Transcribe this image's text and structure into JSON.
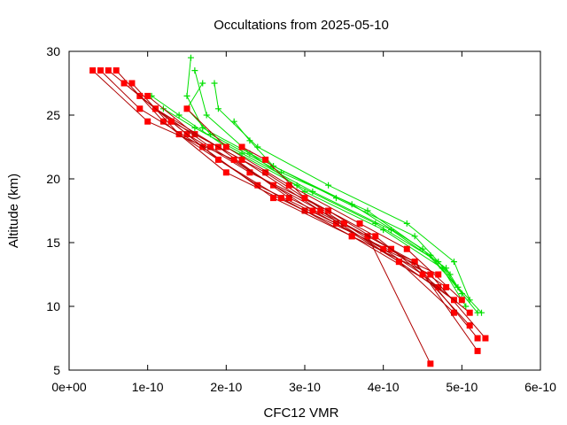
{
  "chart_data": {
    "type": "line",
    "title": "Occultations from 2025-05-10",
    "xlabel": "CFC12 VMR",
    "ylabel": "Altitude (km)",
    "xlim": [
      0,
      6e-10
    ],
    "ylim": [
      5,
      30
    ],
    "x_ticks": [
      0,
      1e-10,
      2e-10,
      3e-10,
      4e-10,
      5e-10,
      6e-10
    ],
    "x_tick_labels": [
      "0e+00",
      "1e-10",
      "2e-10",
      "3e-10",
      "4e-10",
      "5e-10",
      "6e-10"
    ],
    "y_ticks": [
      5,
      10,
      15,
      20,
      25,
      30
    ],
    "y_tick_labels": [
      "5",
      "10",
      "15",
      "20",
      "25",
      "30"
    ],
    "grid": false,
    "legend": "none",
    "colors": {
      "red": "#ff0000",
      "redLine": "#b00000",
      "green": "#00e000"
    },
    "series_red": [
      {
        "x": [
          6e-11,
          1.2e-10,
          2e-10,
          3e-10,
          4.4e-10,
          5.2e-10
        ],
        "y": [
          28.5,
          24.5,
          20.5,
          17.5,
          13.5,
          7.5
        ]
      },
      {
        "x": [
          8e-11,
          1.4e-10,
          2.4e-10,
          3.4e-10,
          4.2e-10,
          4.9e-10
        ],
        "y": [
          27.5,
          23.5,
          19.5,
          16.5,
          13.5,
          9.5
        ]
      },
      {
        "x": [
          1e-10,
          1.6e-10,
          2.5e-10,
          3.5e-10,
          4.5e-10,
          5.1e-10
        ],
        "y": [
          26.5,
          23.5,
          20.5,
          16.5,
          12.5,
          8.5
        ]
      },
      {
        "x": [
          5e-11,
          1.1e-10,
          1.9e-10,
          2.8e-10,
          3.8e-10,
          4.6e-10
        ],
        "y": [
          28.5,
          25.5,
          22.5,
          18.5,
          15.5,
          5.5
        ]
      },
      {
        "x": [
          1.5e-10,
          2e-10,
          2.8e-10,
          3.7e-10,
          4.3e-10,
          5e-10
        ],
        "y": [
          25.5,
          22.5,
          19.5,
          16.5,
          14.5,
          10.5
        ]
      },
      {
        "x": [
          9e-11,
          1.5e-10,
          2.3e-10,
          3.3e-10,
          4.1e-10,
          4.8e-10
        ],
        "y": [
          26.5,
          23.5,
          20.5,
          17.5,
          14.5,
          11.5
        ]
      },
      {
        "x": [
          4e-11,
          9e-11,
          1.7e-10,
          2.6e-10,
          3.6e-10,
          4.7e-10
        ],
        "y": [
          28.5,
          25.5,
          22.5,
          18.5,
          15.5,
          11.5
        ]
      },
      {
        "x": [
          1.1e-10,
          1.8e-10,
          2.6e-10,
          3.5e-10,
          4.4e-10,
          5.2e-10
        ],
        "y": [
          25.5,
          22.5,
          19.5,
          16.5,
          13.5,
          6.5
        ]
      },
      {
        "x": [
          3e-11,
          1e-10,
          2.1e-10,
          3.1e-10,
          4e-10,
          4.7e-10
        ],
        "y": [
          28.5,
          24.5,
          21.5,
          17.5,
          14.5,
          12.5
        ]
      },
      {
        "x": [
          1.3e-10,
          1.9e-10,
          2.7e-10,
          3.6e-10,
          4.6e-10,
          5.3e-10
        ],
        "y": [
          24.5,
          21.5,
          18.5,
          15.5,
          12.5,
          7.5
        ]
      },
      {
        "x": [
          7e-11,
          1.3e-10,
          2.2e-10,
          3.2e-10,
          4.2e-10,
          4.9e-10
        ],
        "y": [
          27.5,
          24.5,
          21.5,
          17.5,
          13.5,
          10.5
        ]
      },
      {
        "x": [
          2.2e-10,
          2.5e-10,
          3e-10,
          3.9e-10,
          4.5e-10,
          5.1e-10
        ],
        "y": [
          22.5,
          21.5,
          18.5,
          15.5,
          12.5,
          9.5
        ]
      }
    ],
    "series_green": [
      {
        "x": [
          1.55e-10,
          1.5e-10,
          1.7e-10,
          2.6e-10,
          3.6e-10,
          4.5e-10,
          5.25e-10
        ],
        "y": [
          29.5,
          26.5,
          24.0,
          21.0,
          18.0,
          14.5,
          9.5
        ]
      },
      {
        "x": [
          1.7e-10,
          1.5e-10,
          1.8e-10,
          2.7e-10,
          3.8e-10,
          4.6e-10,
          5.2e-10
        ],
        "y": [
          27.5,
          25.5,
          23.5,
          20.5,
          17.5,
          14.0,
          9.5
        ]
      },
      {
        "x": [
          1.05e-10,
          1.4e-10,
          2e-10,
          2.9e-10,
          3.9e-10,
          4.7e-10,
          4.95e-10
        ],
        "y": [
          26.5,
          25.0,
          22.5,
          19.5,
          16.5,
          13.5,
          11.5
        ]
      },
      {
        "x": [
          1.2e-10,
          1.6e-10,
          2.2e-10,
          3.1e-10,
          4.1e-10,
          4.8e-10,
          5e-10
        ],
        "y": [
          25.5,
          24.0,
          22.0,
          19.0,
          16.0,
          13.0,
          11.0
        ]
      },
      {
        "x": [
          1.85e-10,
          1.9e-10,
          2.4e-10,
          3.3e-10,
          4.3e-10,
          4.9e-10,
          5.1e-10
        ],
        "y": [
          27.5,
          25.5,
          22.5,
          19.5,
          16.5,
          13.5,
          10.5
        ]
      },
      {
        "x": [
          1.6e-10,
          1.75e-10,
          2.3e-10,
          3e-10,
          4e-10,
          4.75e-10,
          5.05e-10
        ],
        "y": [
          28.5,
          25.0,
          22.0,
          19.0,
          16.0,
          13.0,
          10.0
        ]
      },
      {
        "x": [
          2.1e-10,
          2.3e-10,
          2.6e-10,
          3.4e-10,
          4.4e-10,
          4.85e-10
        ],
        "y": [
          24.5,
          23.0,
          21.0,
          18.5,
          15.5,
          12.5
        ]
      }
    ]
  }
}
